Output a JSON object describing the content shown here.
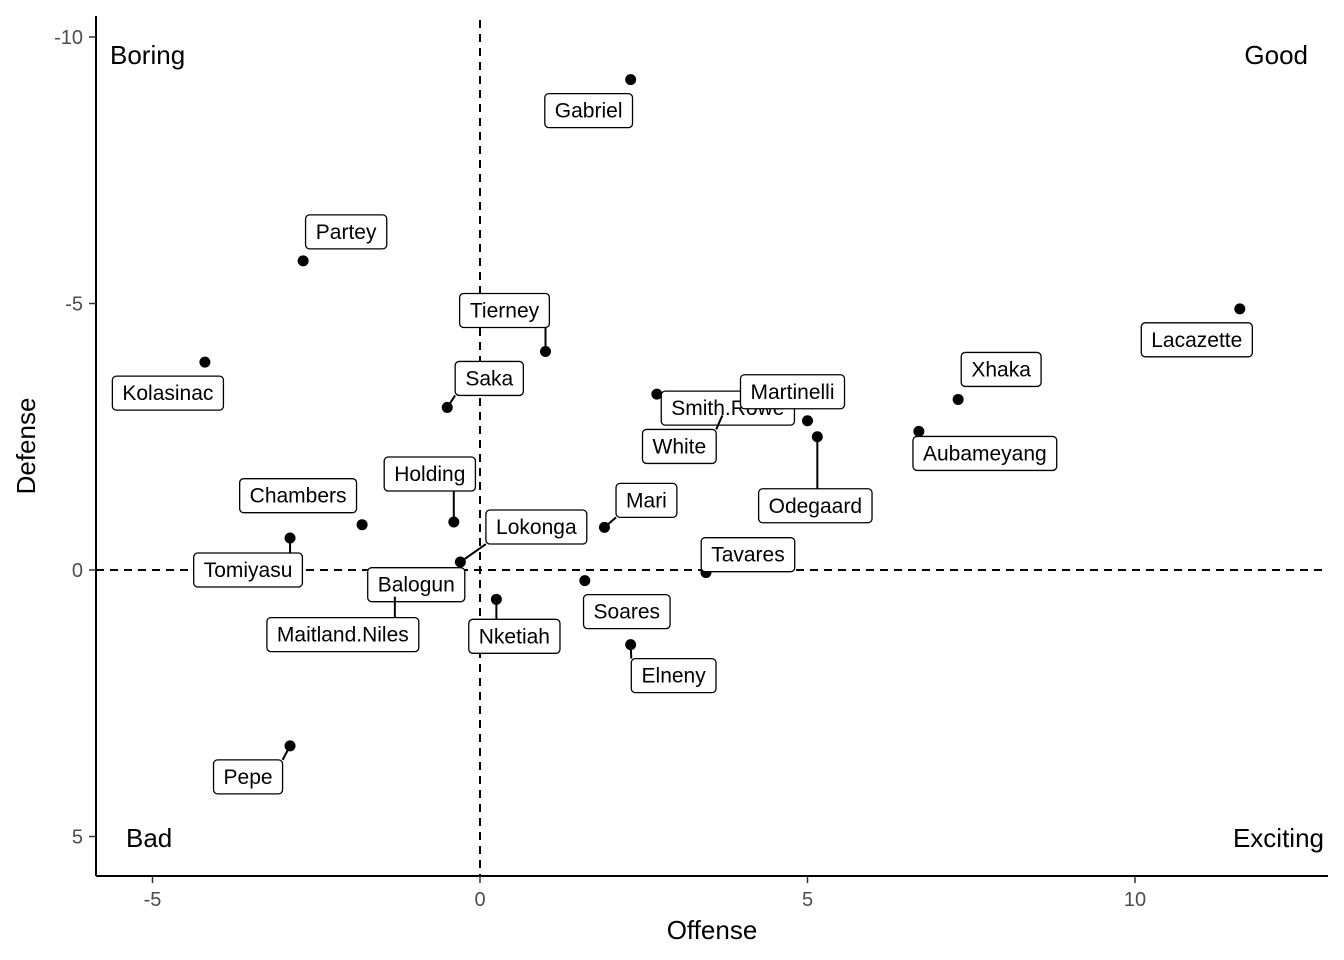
{
  "chart_data": {
    "type": "scatter",
    "title": "",
    "xlabel": "Offense",
    "ylabel": "Defense",
    "xlim": [
      -5.8,
      13
    ],
    "ylim": [
      -10.4,
      5.6
    ],
    "y_reversed": true,
    "x_ticks": [
      -5,
      0,
      5,
      10
    ],
    "y_ticks": [
      -10,
      -5,
      0,
      5
    ],
    "x_tick_labels": [
      "-5",
      "0",
      "5",
      "10"
    ],
    "y_tick_labels": [
      "-10",
      "-5",
      "0",
      "5"
    ],
    "reference_lines": {
      "x": 0,
      "y": 0,
      "style": "dashed"
    },
    "grid": false,
    "quadrant_labels": {
      "top_left": "Boring",
      "top_right": "Good",
      "bottom_left": "Bad",
      "bottom_right": "Exciting"
    },
    "points": [
      {
        "label": "Gabriel",
        "x": 2.3,
        "y": -9.2
      },
      {
        "label": "Partey",
        "x": -2.7,
        "y": -5.8
      },
      {
        "label": "Lacazette",
        "x": 11.6,
        "y": -4.9
      },
      {
        "label": "Kolasinac",
        "x": -4.2,
        "y": -3.9
      },
      {
        "label": "Tierney",
        "x": 1.0,
        "y": -4.1
      },
      {
        "label": "Smith.Rowe",
        "x": 2.7,
        "y": -3.3
      },
      {
        "label": "Xhaka",
        "x": 7.3,
        "y": -3.2
      },
      {
        "label": "Saka",
        "x": -0.5,
        "y": -3.05
      },
      {
        "label": "White",
        "x": 3.7,
        "y": -2.9
      },
      {
        "label": "Martinelli",
        "x": 5.0,
        "y": -2.8
      },
      {
        "label": "Aubameyang",
        "x": 6.7,
        "y": -2.6
      },
      {
        "label": "Odegaard",
        "x": 5.15,
        "y": -2.5
      },
      {
        "label": "Holding",
        "x": -0.4,
        "y": -0.9
      },
      {
        "label": "Chambers",
        "x": -1.8,
        "y": -0.85
      },
      {
        "label": "Mari",
        "x": 1.9,
        "y": -0.8
      },
      {
        "label": "Tomiyasu",
        "x": -2.9,
        "y": -0.6
      },
      {
        "label": "Lokonga",
        "x": -0.3,
        "y": -0.15
      },
      {
        "label": "Balogun",
        "x": -0.5,
        "y": 0.05
      },
      {
        "label": "Tavares",
        "x": 3.45,
        "y": 0.05
      },
      {
        "label": "Soares",
        "x": 1.6,
        "y": 0.2
      },
      {
        "label": "Maitland.Niles",
        "x": -1.3,
        "y": 0.5
      },
      {
        "label": "Nketiah",
        "x": 0.25,
        "y": 0.55
      },
      {
        "label": "Elneny",
        "x": 2.3,
        "y": 1.4
      },
      {
        "label": "Pepe",
        "x": -2.9,
        "y": 3.3
      }
    ]
  }
}
